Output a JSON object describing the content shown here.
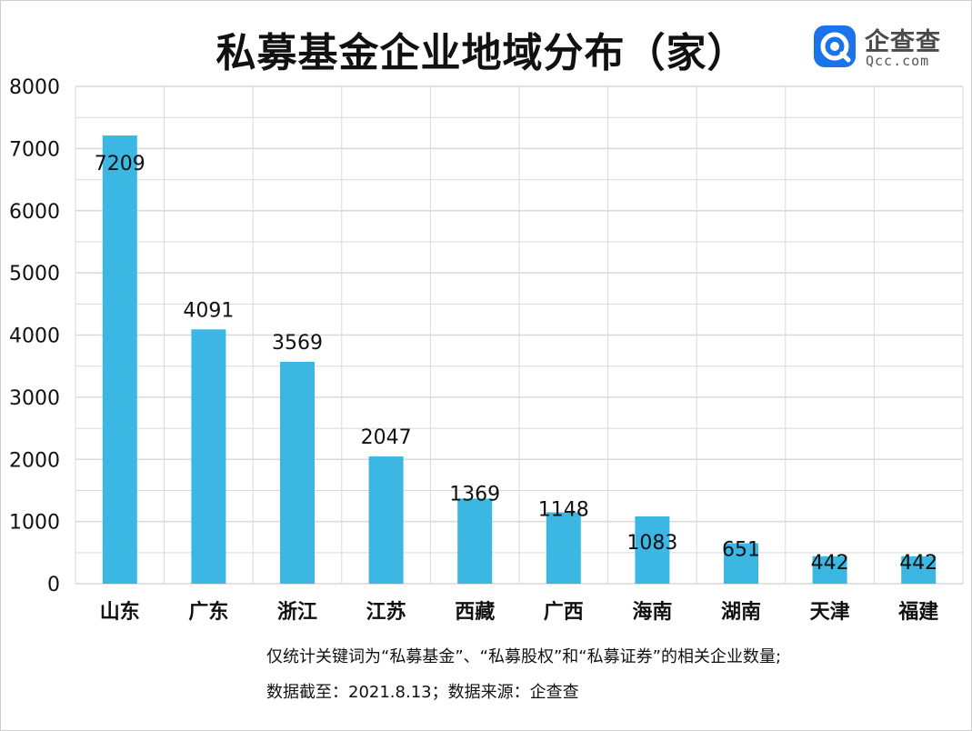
{
  "title": "私募基金企业地域分布（家）",
  "logo": {
    "name": "企查查",
    "url": "Qcc.com",
    "icon": "qcc-logo-icon",
    "color": "#1a73e8"
  },
  "footnote": {
    "line1": "仅统计关键词为“私募基金”、“私募股权”和“私募证券”的相关企业数量;",
    "line2": "数据截至：2021.8.13；数据来源：企查查"
  },
  "colors": {
    "bar": "#3cb7e4",
    "grid": "#d9d9d9",
    "text": "#111111"
  },
  "chart_data": {
    "type": "bar",
    "title": "私募基金企业地域分布（家）",
    "xlabel": "",
    "ylabel": "",
    "categories": [
      "山东",
      "广东",
      "浙江",
      "江苏",
      "西藏",
      "广西",
      "海南",
      "湖南",
      "天津",
      "福建"
    ],
    "values": [
      7209,
      4091,
      3569,
      2047,
      1369,
      1148,
      1083,
      651,
      442,
      442
    ],
    "ylim": [
      0,
      8000
    ],
    "yticks": [
      0,
      1000,
      2000,
      3000,
      4000,
      5000,
      6000,
      7000,
      8000
    ],
    "grid": true,
    "legend": "none"
  }
}
